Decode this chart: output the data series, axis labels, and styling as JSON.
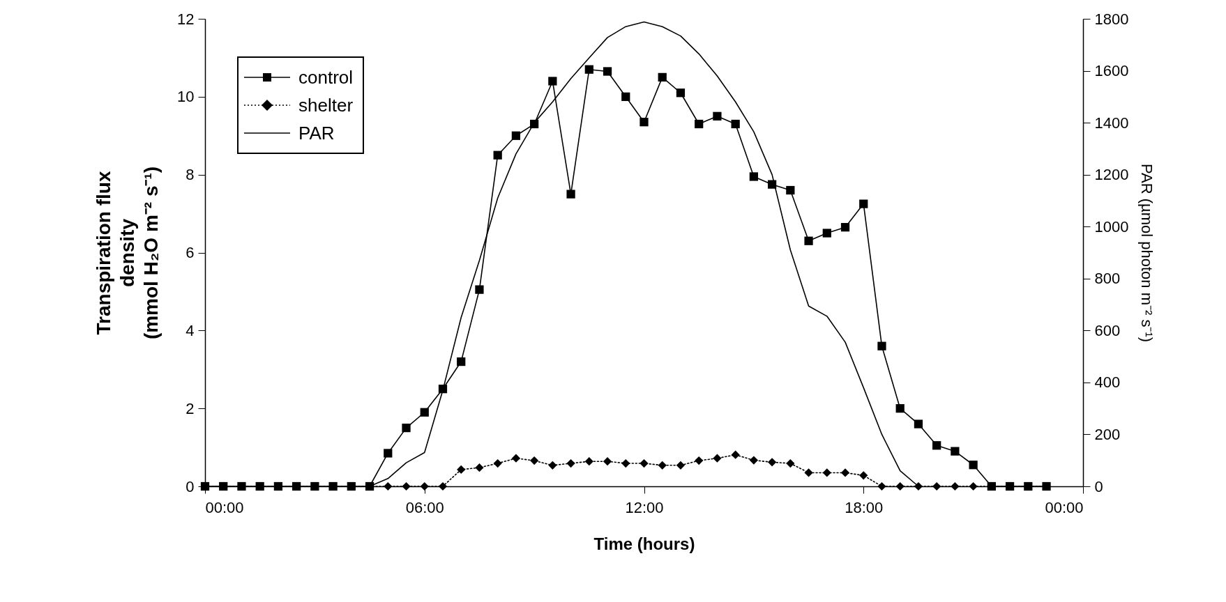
{
  "chart_data": {
    "type": "line",
    "xlabel": "Time (hours)",
    "ylabel": "Transpiration flux\ndensity\n(mmol H₂O m⁻² s⁻¹)",
    "y2label": "PAR (µmol photon m⁻² s⁻¹)",
    "x": [
      0,
      0.5,
      1,
      1.5,
      2,
      2.5,
      3,
      3.5,
      4,
      4.5,
      5,
      5.5,
      6,
      6.5,
      7,
      7.5,
      8,
      8.5,
      9,
      9.5,
      10,
      10.5,
      11,
      11.5,
      12,
      12.5,
      13,
      13.5,
      14,
      14.5,
      15,
      15.5,
      16,
      16.5,
      17,
      17.5,
      18,
      18.5,
      19,
      19.5,
      20,
      20.5,
      21,
      21.5,
      22,
      22.5,
      23
    ],
    "series": [
      {
        "name": "control",
        "color": "#000000",
        "marker": "square",
        "line_style": "solid",
        "values": [
          0,
          0,
          0,
          0,
          0,
          0,
          0,
          0,
          0,
          0,
          0.85,
          1.5,
          1.9,
          2.5,
          3.2,
          5.05,
          8.5,
          9.0,
          9.3,
          10.4,
          7.5,
          10.7,
          10.65,
          10.0,
          9.35,
          10.5,
          10.1,
          9.3,
          9.5,
          9.3,
          7.95,
          7.75,
          7.6,
          6.3,
          6.5,
          6.65,
          7.25,
          3.6,
          2.0,
          1.6,
          1.05,
          0.9,
          0.55,
          0,
          0,
          0,
          0
        ]
      },
      {
        "name": "shelter",
        "color": "#000000",
        "marker": "diamond",
        "line_style": "dotted",
        "values": [
          0,
          0,
          0,
          0,
          0,
          0,
          0,
          0,
          0,
          0,
          0,
          0,
          0,
          0,
          0.43,
          0.48,
          0.59,
          0.72,
          0.66,
          0.54,
          0.59,
          0.64,
          0.64,
          0.59,
          0.59,
          0.54,
          0.54,
          0.66,
          0.72,
          0.81,
          0.67,
          0.62,
          0.59,
          0.35,
          0.35,
          0.35,
          0.28,
          0,
          0,
          0,
          0,
          0,
          0,
          0,
          0,
          0,
          0
        ]
      },
      {
        "name": "PAR",
        "color": "#000000",
        "marker": "none",
        "line_style": "solid",
        "axis": "y2",
        "x": [
          4.5,
          5,
          5.5,
          6,
          6.5,
          7,
          7.5,
          8,
          8.5,
          9,
          9.5,
          10,
          10.5,
          11,
          11.5,
          12,
          12.5,
          13,
          13.5,
          14,
          14.5,
          15,
          15.5,
          16,
          16.5,
          17,
          17.5,
          18,
          18.5,
          19,
          19.5
        ],
        "values": [
          0,
          30,
          91,
          130,
          370,
          650,
          870,
          1110,
          1280,
          1400,
          1480,
          1570,
          1650,
          1728,
          1770,
          1788,
          1770,
          1734,
          1665,
          1580,
          1480,
          1365,
          1200,
          910,
          694,
          655,
          555,
          380,
          200,
          60,
          0
        ]
      }
    ],
    "xlim": [
      0,
      24
    ],
    "xticks": [
      {
        "value": 0,
        "label": "00:00"
      },
      {
        "value": 6,
        "label": "06:00"
      },
      {
        "value": 12,
        "label": "12:00"
      },
      {
        "value": 18,
        "label": "18:00"
      },
      {
        "value": 24,
        "label": "00:00"
      }
    ],
    "ylim": [
      0,
      12
    ],
    "yticks": [
      0,
      2,
      4,
      6,
      8,
      10,
      12
    ],
    "y2lim": [
      0,
      1800
    ],
    "y2ticks": [
      0,
      200,
      400,
      600,
      800,
      1000,
      1200,
      1400,
      1600,
      1800
    ],
    "legend": "top left"
  }
}
